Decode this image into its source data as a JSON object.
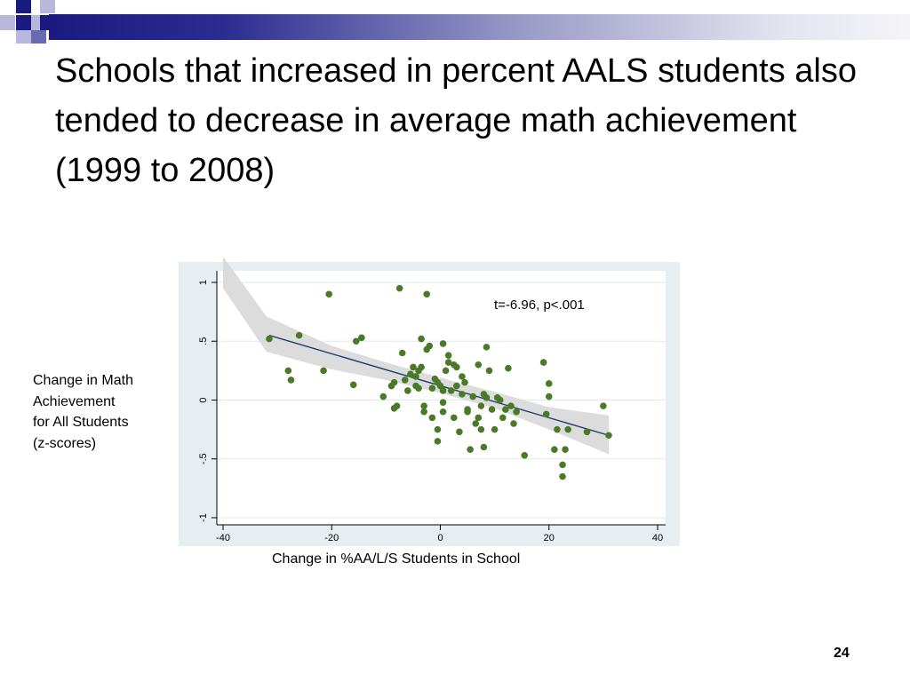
{
  "slide": {
    "title": "Schools that increased in percent AALS students also tended to decrease in average math achievement (1999 to 2008)",
    "page_number": "24",
    "accent_colors": {
      "dark": "#1a1a80",
      "mid": "#6a6ab0",
      "light": "#b8b8dc"
    }
  },
  "chart_data": {
    "type": "scatter",
    "title": "",
    "xlabel": "Change in %AA/L/S Students in School",
    "ylabel": "Change in Math\nAchievement\nfor All Students\n(z-scores)",
    "xlim": [
      -40,
      40
    ],
    "ylim": [
      -1,
      1
    ],
    "xticks": [
      -40,
      -20,
      0,
      20,
      40
    ],
    "yticks": [
      -1,
      -0.5,
      0,
      0.5,
      1
    ],
    "xtick_labels": [
      "-40",
      "-20",
      "0",
      "20",
      "40"
    ],
    "ytick_labels": [
      "-1",
      "-.5",
      "0",
      ".5",
      "1"
    ],
    "grid": true,
    "annotation": "t=-6.96, p<.001",
    "colors": {
      "point": "#4a7a28",
      "fit_line": "#1f3a6e",
      "ci_band": "#d8d8d8",
      "plot_bg": "#e6eef2"
    },
    "fit_line": {
      "x": [
        -31.5,
        31
      ],
      "y": [
        0.55,
        -0.3
      ]
    },
    "confidence_band": {
      "x": [
        -40,
        -32,
        -20,
        -10,
        0,
        10,
        20,
        31
      ],
      "upper": [
        1.22,
        0.71,
        0.46,
        0.32,
        0.19,
        0.07,
        -0.06,
        -0.13
      ],
      "lower": [
        0.95,
        0.41,
        0.26,
        0.17,
        0.06,
        -0.07,
        -0.25,
        -0.46
      ]
    },
    "points": [
      {
        "x": -31.5,
        "y": 0.52
      },
      {
        "x": -26,
        "y": 0.55
      },
      {
        "x": -20.5,
        "y": 0.9
      },
      {
        "x": -28,
        "y": 0.25
      },
      {
        "x": -27.5,
        "y": 0.17
      },
      {
        "x": -21.5,
        "y": 0.25
      },
      {
        "x": -16,
        "y": 0.13
      },
      {
        "x": -15.5,
        "y": 0.5
      },
      {
        "x": -14.5,
        "y": 0.53
      },
      {
        "x": -10.5,
        "y": 0.03
      },
      {
        "x": -9,
        "y": 0.12
      },
      {
        "x": -8.5,
        "y": 0.15
      },
      {
        "x": -8.5,
        "y": -0.07
      },
      {
        "x": -8,
        "y": -0.05
      },
      {
        "x": -7.5,
        "y": 0.95
      },
      {
        "x": -7,
        "y": 0.4
      },
      {
        "x": -6.5,
        "y": 0.17
      },
      {
        "x": -6,
        "y": 0.08
      },
      {
        "x": -5.5,
        "y": 0.22
      },
      {
        "x": -5,
        "y": 0.28
      },
      {
        "x": -4.5,
        "y": 0.12
      },
      {
        "x": -4.5,
        "y": 0.2
      },
      {
        "x": -4,
        "y": 0.25
      },
      {
        "x": -4,
        "y": 0.1
      },
      {
        "x": -3.5,
        "y": 0.28
      },
      {
        "x": -3.5,
        "y": 0.52
      },
      {
        "x": -3,
        "y": -0.05
      },
      {
        "x": -3,
        "y": -0.1
      },
      {
        "x": -2.5,
        "y": 0.9
      },
      {
        "x": -2.5,
        "y": 0.43
      },
      {
        "x": -2,
        "y": 0.46
      },
      {
        "x": -1.5,
        "y": 0.1
      },
      {
        "x": -1.5,
        "y": -0.15
      },
      {
        "x": -1,
        "y": 0.18
      },
      {
        "x": -0.5,
        "y": 0.15
      },
      {
        "x": -0.5,
        "y": -0.25
      },
      {
        "x": -0.5,
        "y": -0.35
      },
      {
        "x": 0,
        "y": 0.12
      },
      {
        "x": 0.5,
        "y": 0.08
      },
      {
        "x": 0.5,
        "y": -0.02
      },
      {
        "x": 0.5,
        "y": -0.1
      },
      {
        "x": 0.5,
        "y": 0.48
      },
      {
        "x": 1,
        "y": 0.25
      },
      {
        "x": 1.5,
        "y": 0.38
      },
      {
        "x": 1.5,
        "y": 0.32
      },
      {
        "x": 2,
        "y": 0.08
      },
      {
        "x": 2.5,
        "y": 0.3
      },
      {
        "x": 2.5,
        "y": -0.15
      },
      {
        "x": 3,
        "y": 0.28
      },
      {
        "x": 3,
        "y": 0.12
      },
      {
        "x": 3.5,
        "y": -0.27
      },
      {
        "x": 4,
        "y": 0.05
      },
      {
        "x": 4,
        "y": 0.2
      },
      {
        "x": 4.5,
        "y": 0.15
      },
      {
        "x": 5,
        "y": -0.08
      },
      {
        "x": 5,
        "y": -0.1
      },
      {
        "x": 5.5,
        "y": -0.42
      },
      {
        "x": 6,
        "y": 0.03
      },
      {
        "x": 6.5,
        "y": -0.2
      },
      {
        "x": 7,
        "y": 0.3
      },
      {
        "x": 7,
        "y": -0.15
      },
      {
        "x": 7.5,
        "y": -0.05
      },
      {
        "x": 7.5,
        "y": -0.25
      },
      {
        "x": 8,
        "y": -0.4
      },
      {
        "x": 8,
        "y": 0.05
      },
      {
        "x": 8.5,
        "y": 0.45
      },
      {
        "x": 8.5,
        "y": 0.02
      },
      {
        "x": 9,
        "y": 0.25
      },
      {
        "x": 9.5,
        "y": -0.08
      },
      {
        "x": 10,
        "y": -0.25
      },
      {
        "x": 10.5,
        "y": 0.02
      },
      {
        "x": 11,
        "y": 0.0
      },
      {
        "x": 11.5,
        "y": -0.15
      },
      {
        "x": 12,
        "y": -0.08
      },
      {
        "x": 12.5,
        "y": 0.27
      },
      {
        "x": 13,
        "y": -0.05
      },
      {
        "x": 13.5,
        "y": -0.2
      },
      {
        "x": 14,
        "y": -0.1
      },
      {
        "x": 15.5,
        "y": -0.47
      },
      {
        "x": 19,
        "y": 0.32
      },
      {
        "x": 19.5,
        "y": -0.12
      },
      {
        "x": 20,
        "y": 0.03
      },
      {
        "x": 20,
        "y": 0.14
      },
      {
        "x": 21,
        "y": -0.42
      },
      {
        "x": 21.5,
        "y": -0.25
      },
      {
        "x": 22.5,
        "y": -0.55
      },
      {
        "x": 22.5,
        "y": -0.65
      },
      {
        "x": 23,
        "y": -0.42
      },
      {
        "x": 23.5,
        "y": -0.25
      },
      {
        "x": 27,
        "y": -0.27
      },
      {
        "x": 30,
        "y": -0.05
      },
      {
        "x": 31,
        "y": -0.3
      }
    ]
  }
}
